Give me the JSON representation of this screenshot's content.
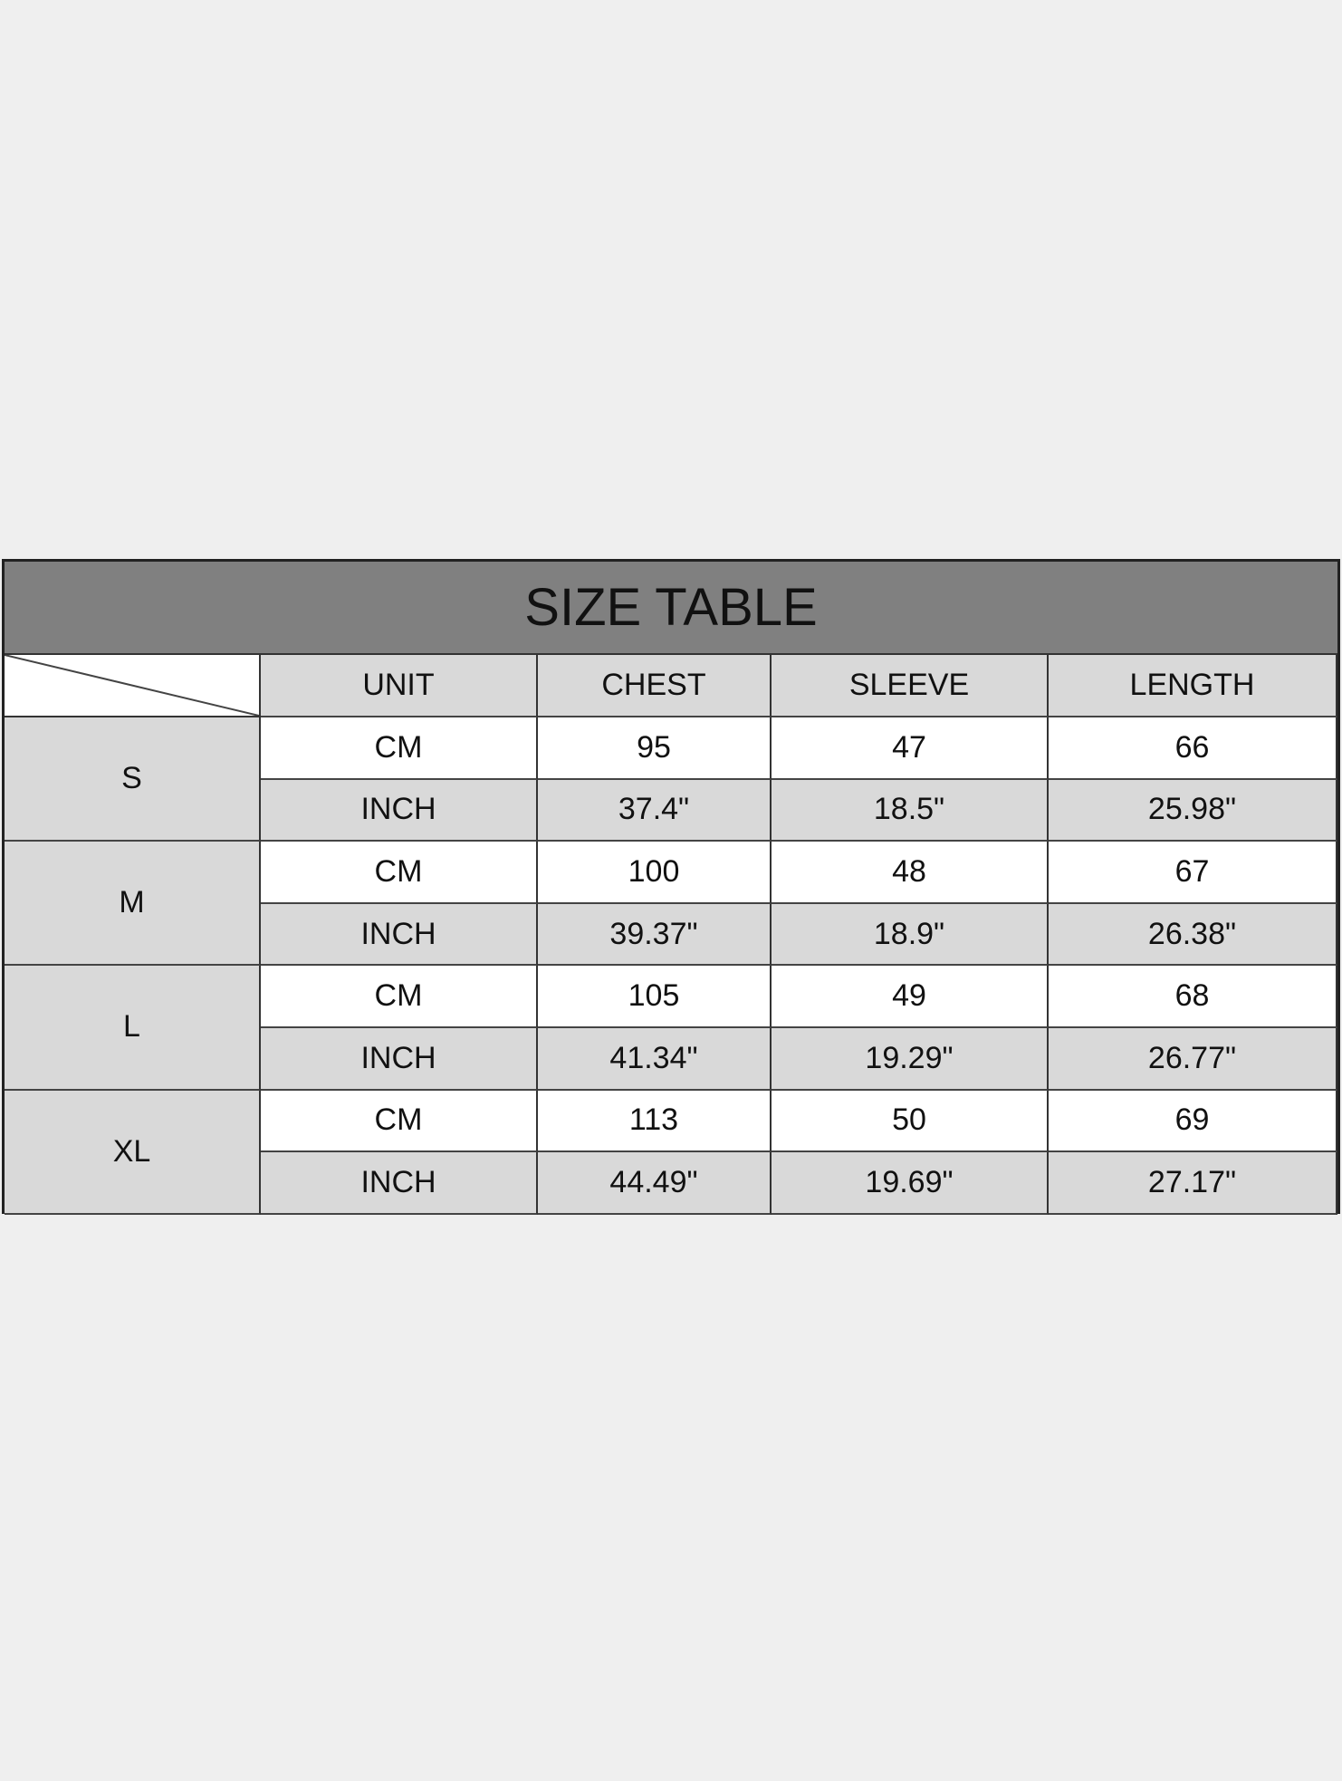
{
  "title": "SIZE TABLE",
  "columns": [
    "UNIT",
    "CHEST",
    "SLEEVE",
    "LENGTH"
  ],
  "rows": [
    {
      "size": "S",
      "cm": [
        "CM",
        "95",
        "47",
        "66"
      ],
      "inch": [
        "INCH",
        "37.4\"",
        "18.5\"",
        "25.98\""
      ]
    },
    {
      "size": "M",
      "cm": [
        "CM",
        "100",
        "48",
        "67"
      ],
      "inch": [
        "INCH",
        "39.37\"",
        "18.9\"",
        "26.38\""
      ]
    },
    {
      "size": "L",
      "cm": [
        "CM",
        "105",
        "49",
        "68"
      ],
      "inch": [
        "INCH",
        "41.34\"",
        "19.29\"",
        "26.77\""
      ]
    },
    {
      "size": "XL",
      "cm": [
        "CM",
        "113",
        "50",
        "69"
      ],
      "inch": [
        "INCH",
        "44.49\"",
        "19.69\"",
        "27.17\""
      ]
    }
  ],
  "colors": {
    "background": "#efefef",
    "title_fill": "#808080",
    "grey_cell": "#d9d9d9",
    "white_cell": "#ffffff"
  }
}
